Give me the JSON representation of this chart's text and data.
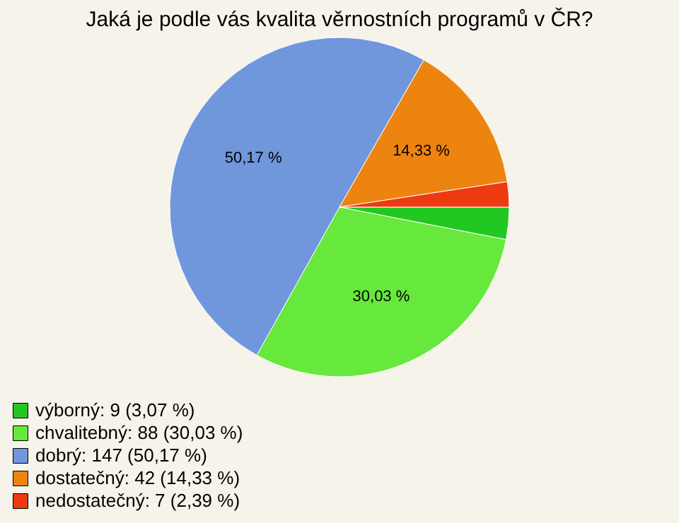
{
  "chart_data": {
    "type": "pie",
    "title": "Jaká je podle vás kvalita věrnostních programů v ČR?",
    "categories": [
      "výborný: 9 (3,07 %)",
      "chvalitebný: 88 (30,03 %)",
      "dobrý: 147 (50,17 %)",
      "dostatečný: 42 (14,33 %)",
      "nedostatečný: 7 (2,39 %)"
    ],
    "values": [
      3.07,
      30.03,
      50.17,
      14.33,
      2.39
    ],
    "value_labels": [
      null,
      "30,03 %",
      "50,17 %",
      "14,33 %",
      null
    ],
    "colors": [
      "#22c822",
      "#66e83c",
      "#7096dc",
      "#ee8410",
      "#ee3a10"
    ],
    "legend": "bottom left"
  }
}
